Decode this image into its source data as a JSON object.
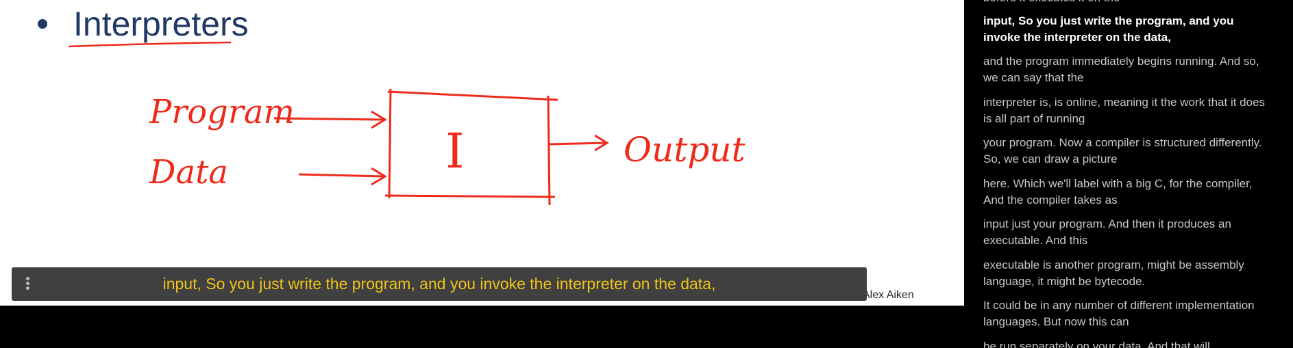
{
  "slide": {
    "heading": "Interpreters",
    "author": "Alex Aiken",
    "diagram": {
      "input_program": "Program",
      "input_data": "Data",
      "box_label": "I",
      "output": "Output"
    }
  },
  "caption": {
    "text": "input, So you just write the program, and you invoke the interpreter on the data,"
  },
  "transcript": {
    "partial_top": "before it executes it on the",
    "lines": [
      "input, So you just write the program, and you invoke the interpreter on the data,",
      "and the program immediately begins running. And so, we can say that the",
      "interpreter is, is online, meaning it the work that it does is all part of running",
      "your program. Now a compiler is structured differently. So, we can draw a picture",
      "here. Which we'll label with a big C, for the compiler, And the compiler takes as",
      "input just your program. And then it produces an executable. And this",
      "executable is another program, might be assembly language, it might be bytecode.",
      "It could be in any number of different implementation languages. But now this can",
      "be run separately on your data. And that will"
    ]
  },
  "colors": {
    "heading": "#1f3864",
    "ink": "#ee2a1a",
    "caption_text": "#f0c419",
    "caption_bg": "#404040",
    "transcript_text": "#c8c8c8",
    "transcript_active": "#ffffff"
  }
}
